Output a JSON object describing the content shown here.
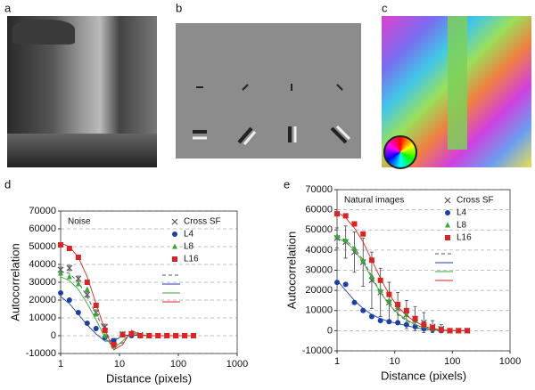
{
  "panel_labels": [
    "a",
    "b",
    "c",
    "d",
    "e"
  ],
  "chart_data": [
    {
      "type": "scatter",
      "annotation": "Noise",
      "xlabel": "Distance (pixels)",
      "ylabel": "Autocorrelation",
      "x": [
        1,
        1.41,
        2,
        2.83,
        4,
        5.66,
        8,
        11.3,
        16,
        22.6,
        32,
        45.3,
        64,
        90.5,
        128,
        181
      ],
      "log_x": true,
      "xlim": [
        1,
        1000
      ],
      "xticks": [
        1,
        10,
        100,
        1000
      ],
      "ylim": [
        -10000,
        70000
      ],
      "yticks": [
        -10000,
        0,
        10000,
        20000,
        30000,
        40000,
        50000,
        60000,
        70000
      ],
      "grid": true,
      "legend": "upper right",
      "series": [
        {
          "name": "Cross SF",
          "color": "#555555",
          "marker": "x",
          "dashed": true,
          "values": [
            37000,
            38000,
            32000,
            23000,
            13000,
            5000,
            -3000,
            1000,
            1000,
            500,
            0,
            0,
            0,
            0,
            0,
            0
          ],
          "errors": [
            1500,
            1500,
            1500,
            1500,
            1500,
            1500,
            1500,
            1000,
            1000,
            800,
            500,
            500,
            500,
            500,
            500,
            500
          ],
          "fit": [
            36000,
            35000,
            30000,
            22000,
            12000,
            3000,
            -5000,
            -4000,
            1500,
            500,
            0,
            0,
            0,
            0,
            0,
            0
          ]
        },
        {
          "name": "L4",
          "color": "#1a3fa8",
          "marker": "circle",
          "dashed": false,
          "values": [
            24000,
            20000,
            13000,
            7000,
            4000,
            -1000,
            -3000,
            500,
            0,
            0,
            0,
            0,
            0,
            0,
            0,
            0
          ],
          "fit": [
            22000,
            18000,
            12000,
            6000,
            1000,
            -3000,
            -3000,
            0,
            500,
            0,
            0,
            0,
            0,
            0,
            0,
            0
          ]
        },
        {
          "name": "L8",
          "color": "#33aa33",
          "marker": "triangle",
          "dashed": false,
          "values": [
            35000,
            33000,
            29000,
            26000,
            12000,
            0,
            -6000,
            1000,
            1000,
            0,
            0,
            0,
            0,
            0,
            0,
            0
          ],
          "fit": [
            33000,
            31000,
            26000,
            18000,
            9000,
            -1000,
            -7000,
            -3000,
            2000,
            0,
            0,
            0,
            0,
            0,
            0,
            0
          ]
        },
        {
          "name": "L16",
          "color": "#dd2222",
          "marker": "square",
          "dashed": false,
          "values": [
            51000,
            49000,
            44000,
            30000,
            17000,
            3000,
            -5000,
            500,
            1000,
            0,
            0,
            0,
            0,
            0,
            0,
            0
          ],
          "fit": [
            52000,
            50000,
            44000,
            33000,
            18000,
            3000,
            -8000,
            -5000,
            3000,
            500,
            0,
            0,
            0,
            0,
            0,
            0
          ]
        }
      ]
    },
    {
      "type": "scatter",
      "annotation": "Natural images",
      "xlabel": "Distance (pixels)",
      "ylabel": "Autocorrelation",
      "x": [
        1,
        1.41,
        2,
        2.83,
        4,
        5.66,
        8,
        11.3,
        16,
        22.6,
        32,
        45.3,
        64,
        90.5,
        128,
        181
      ],
      "log_x": true,
      "xlim": [
        1,
        1000
      ],
      "xticks": [
        1,
        10,
        100,
        1000
      ],
      "ylim": [
        -10000,
        70000
      ],
      "yticks": [
        -10000,
        0,
        10000,
        20000,
        30000,
        40000,
        50000,
        60000,
        70000
      ],
      "grid": true,
      "legend": "upper right",
      "series": [
        {
          "name": "Cross SF",
          "color": "#555555",
          "marker": "x",
          "dashed": true,
          "values": [
            46000,
            44000,
            39000,
            34000,
            25000,
            19000,
            14000,
            11000,
            8000,
            6000,
            4000,
            2000,
            1000,
            0,
            0,
            0
          ],
          "errors": [
            5000,
            8000,
            10000,
            12000,
            14000,
            12000,
            10000,
            8000,
            7000,
            6000,
            5000,
            3000,
            2000,
            1000,
            500,
            500
          ],
          "fit": [
            47000,
            45000,
            41000,
            35000,
            27000,
            19000,
            13000,
            8000,
            5000,
            3000,
            1500,
            700,
            300,
            100,
            0,
            0
          ]
        },
        {
          "name": "L4",
          "color": "#1a3fa8",
          "marker": "circle",
          "dashed": false,
          "values": [
            24000,
            23000,
            14000,
            10000,
            7000,
            5000,
            4500,
            4000,
            3000,
            2000,
            1000,
            500,
            0,
            0,
            0,
            0
          ],
          "fit": [
            25000,
            20000,
            15000,
            11000,
            8000,
            6000,
            4500,
            3500,
            2500,
            1500,
            800,
            300,
            100,
            0,
            0,
            0
          ]
        },
        {
          "name": "L8",
          "color": "#33aa33",
          "marker": "triangle",
          "dashed": false,
          "values": [
            47000,
            45000,
            41000,
            35000,
            27000,
            20000,
            15000,
            12000,
            8000,
            5000,
            2500,
            1000,
            500,
            0,
            0,
            0
          ],
          "fit": [
            46000,
            44000,
            40000,
            34000,
            26000,
            19000,
            13000,
            8500,
            5500,
            3000,
            1500,
            600,
            200,
            0,
            0,
            0
          ]
        },
        {
          "name": "L16",
          "color": "#dd2222",
          "marker": "square",
          "dashed": false,
          "values": [
            58000,
            57000,
            53000,
            48000,
            35000,
            25000,
            18000,
            13000,
            10000,
            6000,
            3000,
            1500,
            500,
            0,
            0,
            0
          ],
          "fit": [
            59000,
            56000,
            51000,
            44000,
            35000,
            26000,
            18000,
            12000,
            7500,
            4500,
            2300,
            1000,
            400,
            100,
            0,
            0
          ]
        }
      ]
    }
  ]
}
